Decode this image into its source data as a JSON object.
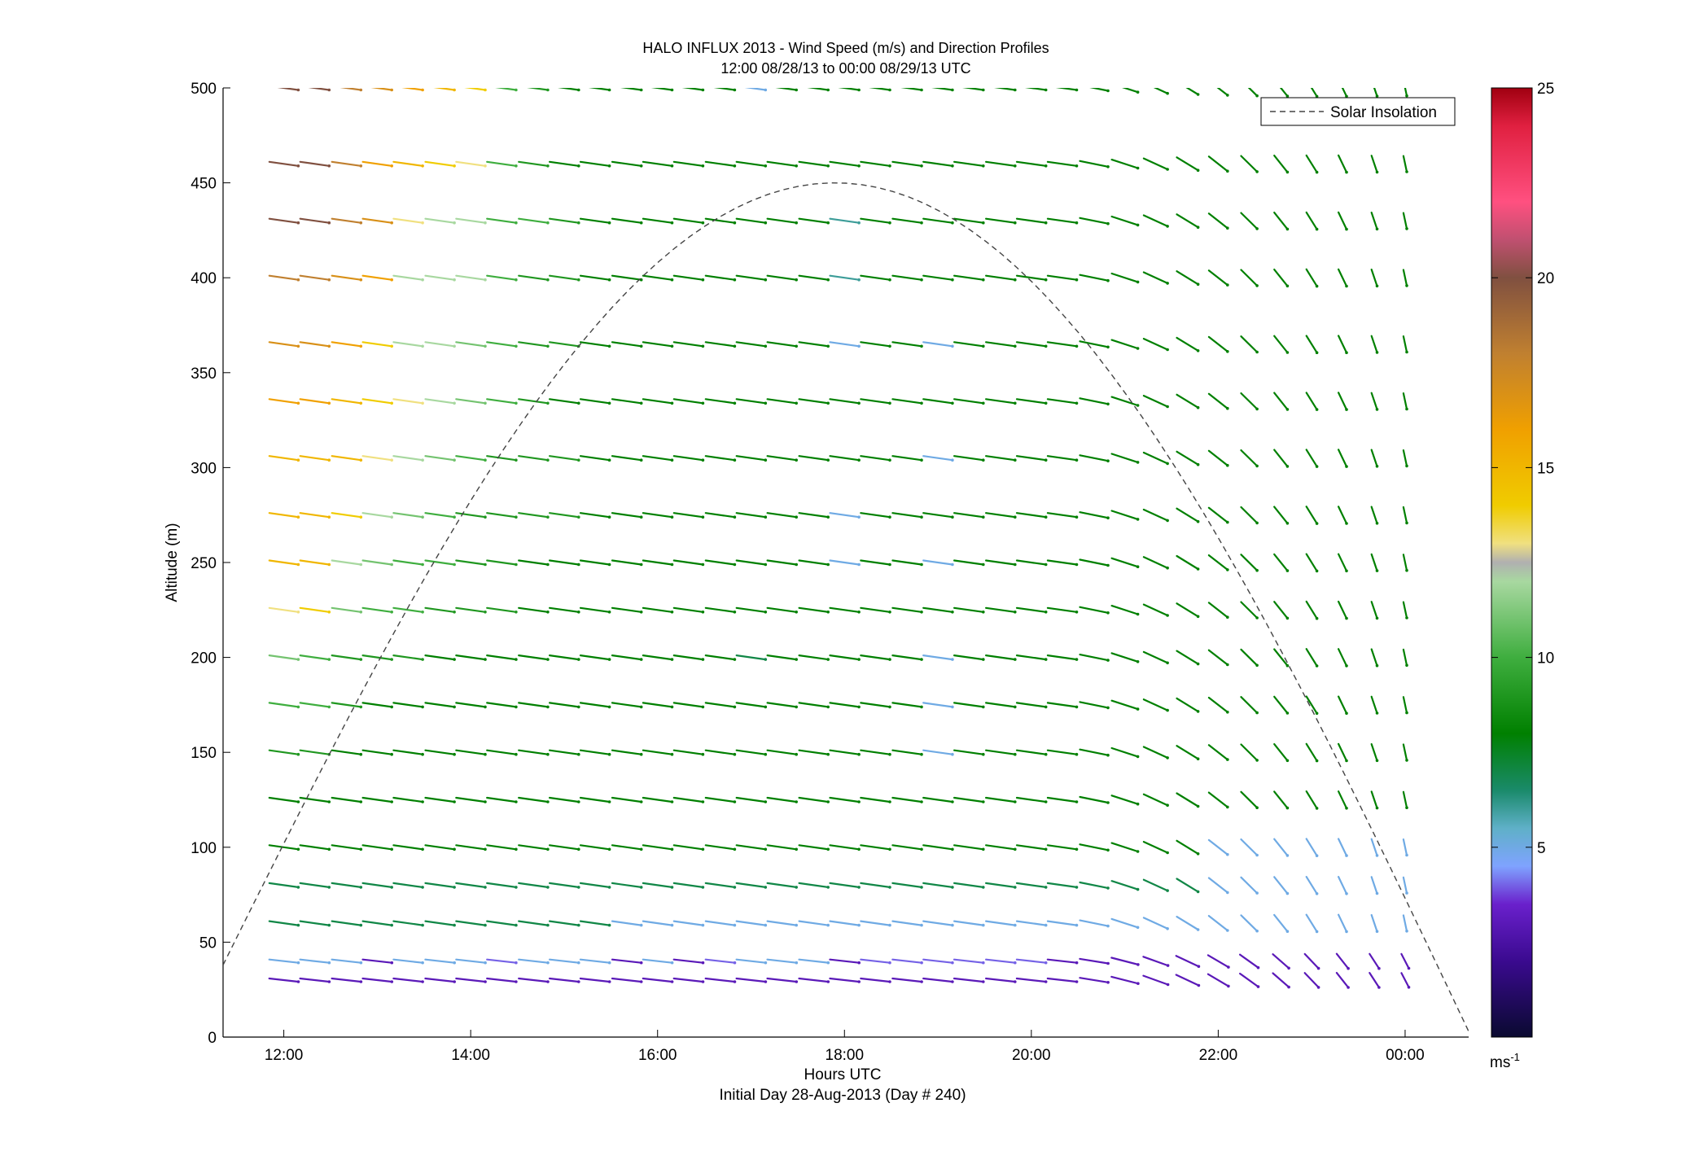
{
  "chart_data": {
    "type": "wind-barb-profile",
    "title": "HALO INFLUX 2013 - Wind Speed (m/s) and Direction Profiles",
    "subtitle": "12:00 08/28/13 to 00:00 08/29/13  UTC",
    "xlabel": "Hours UTC",
    "xlabel_note": "Initial Day 28-Aug-2013 (Day # 240)",
    "ylabel": "Altitude (m)",
    "xlim": [
      11.35,
      24.68
    ],
    "ylim": [
      0,
      500
    ],
    "x_ticks": [
      12,
      14,
      16,
      18,
      20,
      22,
      24
    ],
    "x_tick_labels": [
      "12:00",
      "14:00",
      "16:00",
      "18:00",
      "20:00",
      "22:00",
      "00:00"
    ],
    "y_ticks": [
      0,
      50,
      100,
      150,
      200,
      250,
      300,
      350,
      400,
      450,
      500
    ],
    "y_tick_labels": [
      "0",
      "50",
      "100",
      "150",
      "200",
      "250",
      "300",
      "350",
      "400",
      "450",
      "500"
    ],
    "altitudes": [
      30,
      40,
      60,
      80,
      100,
      125,
      150,
      175,
      200,
      225,
      250,
      275,
      305,
      335,
      365,
      400,
      430,
      460,
      500
    ],
    "times": [
      12.0,
      12.33,
      12.67,
      13.0,
      13.33,
      13.67,
      14.0,
      14.33,
      14.67,
      15.0,
      15.33,
      15.67,
      16.0,
      16.33,
      16.67,
      17.0,
      17.33,
      17.67,
      18.0,
      18.33,
      18.67,
      19.0,
      19.33,
      19.67,
      20.0,
      20.33,
      20.67,
      21.0,
      21.33,
      21.67,
      22.0,
      22.33,
      22.67,
      23.0,
      23.33,
      23.67,
      24.0
    ],
    "wind_speed_profiles": [
      {
        "altitude": 30,
        "speed": [
          3,
          3,
          3,
          3,
          3,
          3,
          3,
          3,
          3,
          3,
          3,
          3,
          3,
          3,
          3,
          3,
          3,
          3,
          3,
          3,
          3,
          3,
          3,
          3,
          3,
          3,
          3,
          3,
          3,
          3,
          3,
          3,
          3,
          3,
          3,
          3,
          3
        ]
      },
      {
        "altitude": 40,
        "speed": [
          5,
          5,
          5,
          3,
          5,
          5,
          5,
          4,
          5,
          5,
          5,
          3,
          5,
          3,
          4,
          5,
          5,
          5,
          3,
          4,
          4,
          4,
          4,
          4,
          4,
          3,
          3,
          3,
          3,
          3,
          3,
          3,
          3,
          3,
          3,
          3,
          3
        ]
      },
      {
        "altitude": 60,
        "speed": [
          7,
          7,
          7,
          7,
          7,
          7,
          7,
          7,
          7,
          7,
          7,
          5,
          5,
          5,
          5,
          5,
          5,
          5,
          5,
          5,
          5,
          5,
          5,
          5,
          5,
          5,
          5,
          5,
          5,
          5,
          5,
          5,
          5,
          5,
          5,
          5,
          5
        ]
      },
      {
        "altitude": 80,
        "speed": [
          7,
          7,
          7,
          7,
          7,
          7,
          7,
          7,
          7,
          7,
          7,
          7,
          7,
          7,
          7,
          7,
          7,
          7,
          7,
          7,
          7,
          7,
          7,
          7,
          7,
          7,
          7,
          7,
          7,
          7,
          5,
          5,
          5,
          5,
          5,
          5,
          5
        ]
      },
      {
        "altitude": 100,
        "speed": [
          8,
          8,
          8,
          8,
          8,
          8,
          8,
          8,
          8,
          8,
          8,
          8,
          8,
          8,
          8,
          8,
          8,
          8,
          8,
          8,
          8,
          8,
          8,
          8,
          8,
          8,
          8,
          8,
          8,
          8,
          5,
          5,
          5,
          5,
          5,
          5,
          5
        ]
      },
      {
        "altitude": 125,
        "speed": [
          8,
          8,
          8,
          8,
          8,
          8,
          8,
          8,
          8,
          8,
          8,
          8,
          8,
          8,
          8,
          8,
          8,
          8,
          8,
          8,
          8,
          8,
          8,
          8,
          8,
          8,
          8,
          8,
          8,
          8,
          8,
          8,
          8,
          8,
          8,
          8,
          8
        ]
      },
      {
        "altitude": 150,
        "speed": [
          9,
          9,
          8,
          8,
          8,
          8,
          8,
          8,
          8,
          8,
          8,
          8,
          8,
          8,
          8,
          8,
          8,
          8,
          8,
          8,
          8,
          5,
          8,
          8,
          8,
          8,
          8,
          8,
          8,
          8,
          8,
          8,
          8,
          8,
          8,
          8,
          8
        ]
      },
      {
        "altitude": 175,
        "speed": [
          10,
          10,
          9,
          8,
          8,
          8,
          8,
          8,
          8,
          8,
          8,
          8,
          8,
          8,
          8,
          8,
          8,
          8,
          8,
          8,
          8,
          5,
          8,
          8,
          8,
          8,
          8,
          8,
          8,
          8,
          8,
          8,
          8,
          8,
          8,
          8,
          8
        ]
      },
      {
        "altitude": 200,
        "speed": [
          11,
          10,
          9,
          9,
          9,
          8,
          8,
          8,
          8,
          8,
          8,
          8,
          8,
          8,
          8,
          7,
          8,
          8,
          8,
          8,
          8,
          5,
          8,
          8,
          8,
          8,
          8,
          8,
          8,
          8,
          8,
          8,
          8,
          8,
          8,
          8,
          8
        ]
      },
      {
        "altitude": 225,
        "speed": [
          13,
          14,
          11,
          10,
          10,
          9,
          9,
          9,
          8,
          8,
          8,
          8,
          8,
          8,
          8,
          8,
          8,
          8,
          8,
          8,
          8,
          8,
          8,
          8,
          8,
          8,
          8,
          8,
          8,
          8,
          8,
          8,
          8,
          8,
          8,
          8,
          8
        ]
      },
      {
        "altitude": 250,
        "speed": [
          15,
          15,
          12,
          11,
          10,
          10,
          9,
          9,
          8,
          8,
          8,
          8,
          8,
          8,
          8,
          8,
          8,
          8,
          5,
          8,
          8,
          5,
          8,
          8,
          8,
          8,
          8,
          8,
          8,
          8,
          8,
          8,
          8,
          8,
          8,
          8,
          8
        ]
      },
      {
        "altitude": 275,
        "speed": [
          15,
          15,
          14,
          12,
          11,
          10,
          9,
          9,
          9,
          9,
          8,
          8,
          8,
          8,
          8,
          8,
          8,
          8,
          5,
          8,
          8,
          8,
          8,
          8,
          8,
          8,
          8,
          8,
          8,
          8,
          8,
          8,
          8,
          8,
          8,
          8,
          8
        ]
      },
      {
        "altitude": 305,
        "speed": [
          15,
          15,
          15,
          13,
          12,
          11,
          10,
          9,
          9,
          9,
          8,
          8,
          8,
          8,
          8,
          8,
          8,
          8,
          8,
          8,
          8,
          5,
          8,
          8,
          8,
          8,
          8,
          8,
          8,
          8,
          8,
          8,
          8,
          8,
          8,
          8,
          8
        ]
      },
      {
        "altitude": 335,
        "speed": [
          16,
          16,
          15,
          14,
          13,
          12,
          11,
          10,
          9,
          8,
          8,
          8,
          8,
          8,
          8,
          8,
          8,
          8,
          8,
          8,
          8,
          8,
          8,
          8,
          8,
          8,
          8,
          8,
          8,
          8,
          8,
          8,
          8,
          8,
          8,
          8,
          8
        ]
      },
      {
        "altitude": 365,
        "speed": [
          17,
          17,
          16,
          14,
          12,
          12,
          11,
          10,
          9,
          9,
          8,
          8,
          8,
          8,
          8,
          8,
          8,
          8,
          5,
          8,
          8,
          5,
          8,
          8,
          8,
          8,
          8,
          8,
          8,
          8,
          8,
          8,
          8,
          8,
          8,
          8,
          8
        ]
      },
      {
        "altitude": 400,
        "speed": [
          18,
          18,
          17,
          16,
          12,
          12,
          12,
          10,
          9,
          9,
          8,
          8,
          8,
          8,
          8,
          8,
          8,
          8,
          6,
          8,
          8,
          8,
          8,
          8,
          8,
          8,
          8,
          8,
          8,
          8,
          8,
          8,
          8,
          8,
          8,
          8,
          8
        ]
      },
      {
        "altitude": 430,
        "speed": [
          20,
          20,
          18,
          17,
          13,
          12,
          12,
          10,
          10,
          9,
          8,
          8,
          8,
          8,
          8,
          8,
          8,
          8,
          6,
          8,
          8,
          8,
          8,
          8,
          8,
          8,
          8,
          8,
          8,
          8,
          8,
          8,
          8,
          8,
          8,
          8,
          8
        ]
      },
      {
        "altitude": 460,
        "speed": [
          20,
          20,
          18,
          16,
          15,
          14,
          13,
          10,
          9,
          8,
          8,
          8,
          8,
          8,
          8,
          8,
          8,
          8,
          8,
          8,
          8,
          8,
          8,
          8,
          8,
          8,
          8,
          8,
          8,
          8,
          8,
          8,
          8,
          8,
          8,
          8,
          8
        ]
      },
      {
        "altitude": 500,
        "speed": [
          20,
          20,
          18,
          17,
          16,
          15,
          14,
          10,
          9,
          8,
          8,
          8,
          8,
          8,
          8,
          5,
          8,
          8,
          8,
          8,
          8,
          8,
          8,
          8,
          8,
          8,
          8,
          8,
          8,
          8,
          8,
          8,
          8,
          8,
          8,
          8,
          8
        ]
      }
    ],
    "solar_insolation": {
      "label": "Solar Insolation",
      "peak_x": 17.9,
      "peak_y": 450,
      "x_start": 11.35,
      "y_start": 38,
      "x_end": 24.68,
      "y_end": 3
    },
    "legend": {
      "placement": "top-right",
      "entries": [
        "Solar Insolation"
      ]
    },
    "colorbar": {
      "range": [
        0,
        25
      ],
      "ticks": [
        5,
        10,
        15,
        20,
        25
      ],
      "tick_labels": [
        "5",
        "10",
        "15",
        "20",
        "25"
      ],
      "unit_label": "ms",
      "unit_exponent": "-1",
      "colormap": [
        [
          0,
          "#0a0a30"
        ],
        [
          2,
          "#3a0a8f"
        ],
        [
          3.5,
          "#6a20cc"
        ],
        [
          4.5,
          "#7fa3ff"
        ],
        [
          5.5,
          "#5fb0c8"
        ],
        [
          6.5,
          "#1a8a6a"
        ],
        [
          8,
          "#008000"
        ],
        [
          10,
          "#3fae3f"
        ],
        [
          12,
          "#a8d8a0"
        ],
        [
          12.5,
          "#b0b0b0"
        ],
        [
          13,
          "#f0e080"
        ],
        [
          14,
          "#f0cc00"
        ],
        [
          16,
          "#f0a000"
        ],
        [
          18,
          "#c08030"
        ],
        [
          20,
          "#805040"
        ],
        [
          21,
          "#c05070"
        ],
        [
          22,
          "#ff5080"
        ],
        [
          24,
          "#e02040"
        ],
        [
          25,
          "#a00010"
        ]
      ]
    }
  }
}
